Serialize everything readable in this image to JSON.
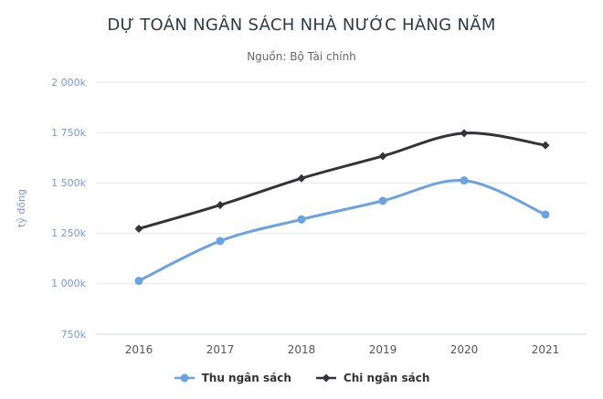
{
  "chart_data": {
    "type": "line",
    "line_shape": "spline",
    "title": "DỰ TOÁN NGÂN SÁCH NHÀ NƯỚC HÀNG NĂM",
    "subtitle": "Nguồn: Bộ Tài chính",
    "xlabel": "",
    "ylabel": "tỷ đồng",
    "categories": [
      "2016",
      "2017",
      "2018",
      "2019",
      "2020",
      "2021"
    ],
    "series": [
      {
        "name": "Thu ngân sách",
        "marker": "circle",
        "color": "#6ba3e0",
        "values": [
          1014.5,
          1212.2,
          1319.2,
          1411.3,
          1512.3,
          1343.3
        ]
      },
      {
        "name": "Chi ngân sách",
        "marker": "diamond",
        "color": "#333338",
        "values": [
          1273.2,
          1390.5,
          1523.2,
          1633.3,
          1747.1,
          1687.0
        ]
      }
    ],
    "values_unit_suffix": "k",
    "ylim": [
      750,
      2000
    ],
    "yticks": [
      750,
      1000,
      1250,
      1500,
      1750,
      2000
    ],
    "ytick_labels": [
      "750k",
      "1 000k",
      "1 250k",
      "1 500k",
      "1 750k",
      "2 000k"
    ],
    "grid": true,
    "legend_position": "bottom"
  },
  "styles": {
    "title_color": "#2e3a48",
    "subtitle_color": "#666666",
    "y_axis_label_color": "#7a96d8",
    "x_axis_label_color": "#555555",
    "legend_text_color": "#333333",
    "grid_color": "#e6e6e6",
    "axis_line_color": "#ccd6eb",
    "background": "#ffffff"
  }
}
